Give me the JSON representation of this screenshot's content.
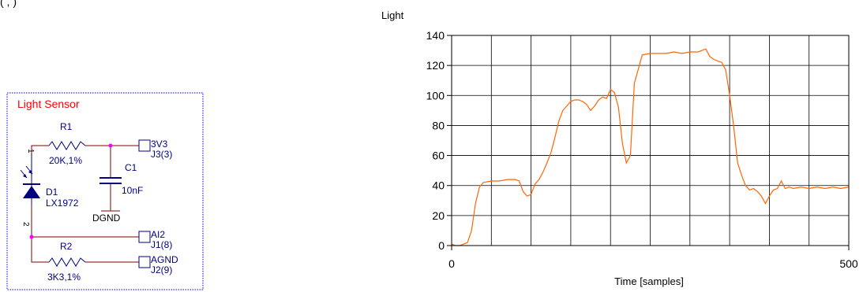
{
  "top_fragment": "(                    ,           )",
  "schematic": {
    "title": "Light Sensor",
    "r1": {
      "ref": "R1",
      "value": "20K,1%"
    },
    "c1": {
      "ref": "C1",
      "value": "10nF"
    },
    "d1": {
      "ref": "D1",
      "value": "LX1972"
    },
    "r2": {
      "ref": "R2",
      "value": "3K3,1%"
    },
    "dgnd": "DGND",
    "pin1": "1",
    "pin2": "2",
    "conn_3v3": {
      "net": "3V3",
      "pin": "J3(3)"
    },
    "conn_ai2": {
      "net": "AI2",
      "pin": "J1(8)"
    },
    "conn_agnd": {
      "net": "AGND",
      "pin": "J2(9)"
    },
    "colors": {
      "wire": "#800000",
      "component": "#000080",
      "title": "#ff0000",
      "frame": "#0000ff",
      "junction": "#ff00ff"
    }
  },
  "chart_data": {
    "type": "line",
    "title": "",
    "ylabel": "Light",
    "xlabel": "Time [samples]",
    "xlim": [
      0,
      500
    ],
    "ylim": [
      0,
      140
    ],
    "xticks": [
      0,
      500
    ],
    "yticks": [
      0,
      20,
      40,
      60,
      80,
      100,
      120,
      140
    ],
    "grid": true,
    "grid_x_step": 50,
    "line_color": "#ff6600",
    "x": [
      0,
      5,
      10,
      15,
      20,
      25,
      30,
      35,
      40,
      50,
      60,
      70,
      80,
      85,
      90,
      95,
      100,
      105,
      110,
      115,
      120,
      125,
      130,
      135,
      140,
      145,
      150,
      155,
      160,
      165,
      170,
      175,
      180,
      185,
      190,
      195,
      200,
      205,
      210,
      215,
      220,
      225,
      230,
      240,
      250,
      260,
      270,
      280,
      290,
      300,
      310,
      320,
      325,
      330,
      335,
      340,
      345,
      350,
      355,
      360,
      365,
      370,
      375,
      380,
      385,
      390,
      395,
      400,
      405,
      410,
      415,
      420,
      425,
      430,
      440,
      450,
      460,
      470,
      480,
      490,
      500
    ],
    "y": [
      1,
      0,
      0,
      1,
      2,
      10,
      28,
      39,
      42,
      43,
      43,
      44,
      44,
      43,
      36,
      33,
      34,
      41,
      44,
      49,
      55,
      62,
      72,
      83,
      90,
      93,
      96,
      97,
      97,
      96,
      94,
      90,
      93,
      97,
      99,
      98,
      104,
      102,
      92,
      68,
      55,
      60,
      108,
      127,
      128,
      128,
      128,
      129,
      128,
      129,
      129,
      131,
      126,
      124,
      123,
      122,
      117,
      100,
      80,
      55,
      47,
      40,
      37,
      38,
      36,
      33,
      28,
      33,
      37,
      38,
      43,
      38,
      39,
      38,
      39,
      38,
      39,
      38,
      39,
      38,
      39
    ]
  }
}
